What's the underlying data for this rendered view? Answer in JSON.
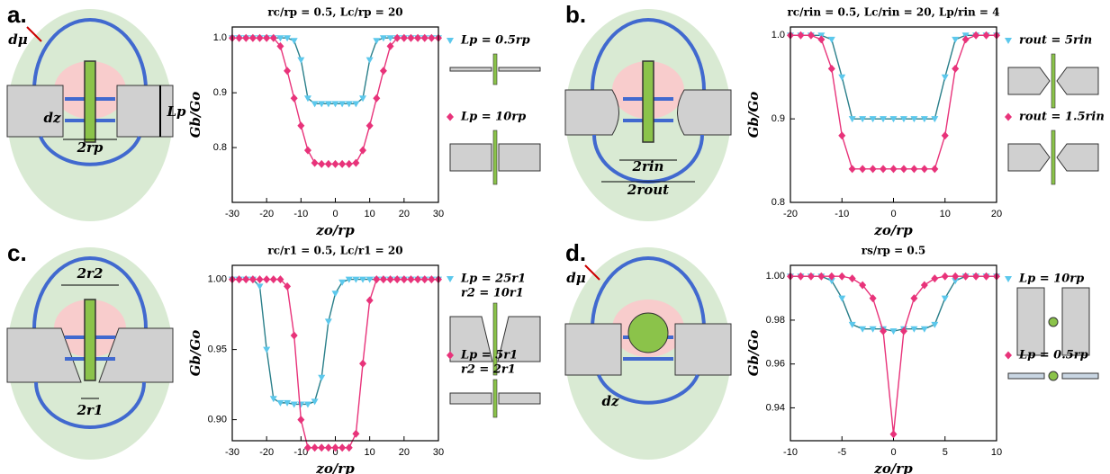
{
  "chart_data": [
    {
      "type": "line",
      "label": "a.",
      "title": "rc/rp = 0.5, Lc/rp = 20",
      "xlabel": "zo/rp",
      "ylabel": "Gb/Go",
      "diagram_labels": [
        "dμ",
        "dz",
        "Lp",
        "2rp"
      ],
      "xlim": [
        -30,
        30
      ],
      "xticks": [
        -30,
        -20,
        -10,
        0,
        10,
        20,
        30
      ],
      "ylim": [
        0.7,
        1.02
      ],
      "yticks": [
        0.8,
        0.9,
        {
          "value": 1,
          "label": "1.0"
        }
      ],
      "x": [
        -30,
        -28,
        -26,
        -24,
        -22,
        -20,
        -18,
        -16,
        -14,
        -12,
        -10,
        -8,
        -6,
        -4,
        -2,
        0,
        2,
        4,
        6,
        8,
        10,
        12,
        14,
        16,
        18,
        20,
        22,
        24,
        26,
        28,
        30
      ],
      "series": [
        {
          "name": [
            "Lp = 0.5rp"
          ],
          "color": "#5cc8ec",
          "line_color": "#2a7f8a",
          "marker": "triangle",
          "values": [
            1,
            1,
            1,
            1,
            1,
            1,
            1,
            1,
            1,
            0.995,
            0.96,
            0.89,
            0.88,
            0.88,
            0.88,
            0.88,
            0.88,
            0.88,
            0.88,
            0.89,
            0.96,
            0.995,
            1,
            1,
            1,
            1,
            1,
            1,
            1,
            1,
            1
          ]
        },
        {
          "name": [
            "Lp = 10rp"
          ],
          "color": "#e8337a",
          "line_color": "#e8337a",
          "marker": "diamond",
          "values": [
            1,
            1,
            1,
            1,
            1,
            1,
            1,
            0.985,
            0.94,
            0.89,
            0.84,
            0.795,
            0.772,
            0.77,
            0.77,
            0.77,
            0.77,
            0.77,
            0.772,
            0.795,
            0.84,
            0.89,
            0.94,
            0.985,
            1,
            1,
            1,
            1,
            1,
            1,
            1
          ]
        }
      ]
    },
    {
      "type": "line",
      "label": "b.",
      "title": "rc/rin = 0.5, Lc/rin = 20, Lp/rin = 4",
      "xlabel": "zo/rp",
      "ylabel": "Gb/Go",
      "diagram_labels": [
        "2rin",
        "2rout"
      ],
      "xlim": [
        -20,
        20
      ],
      "xticks": [
        -20,
        -10,
        0,
        10,
        20
      ],
      "ylim": [
        0.8,
        1.01
      ],
      "yticks": [
        0.8,
        0.9,
        {
          "value": 1,
          "label": "1.0"
        }
      ],
      "x": [
        -20,
        -18,
        -16,
        -14,
        -12,
        -10,
        -8,
        -6,
        -4,
        -2,
        0,
        2,
        4,
        6,
        8,
        10,
        12,
        14,
        16,
        18,
        20
      ],
      "series": [
        {
          "name": [
            "rout = 5rin"
          ],
          "color": "#5cc8ec",
          "line_color": "#2a7f8a",
          "marker": "triangle",
          "values": [
            1,
            1,
            1,
            1,
            0.995,
            0.95,
            0.9,
            0.9,
            0.9,
            0.9,
            0.9,
            0.9,
            0.9,
            0.9,
            0.9,
            0.95,
            0.995,
            1,
            1,
            1,
            1
          ]
        },
        {
          "name": [
            "rout = 1.5rin"
          ],
          "color": "#e8337a",
          "line_color": "#e8337a",
          "marker": "diamond",
          "values": [
            1,
            1,
            1,
            0.995,
            0.96,
            0.88,
            0.84,
            0.84,
            0.84,
            0.84,
            0.84,
            0.84,
            0.84,
            0.84,
            0.84,
            0.88,
            0.96,
            0.995,
            1,
            1,
            1
          ]
        }
      ]
    },
    {
      "type": "line",
      "label": "c.",
      "title": "rc/r1 = 0.5, Lc/r1 = 20",
      "xlabel": "zo/rp",
      "ylabel": "Gb/Go",
      "diagram_labels": [
        "2r2",
        "2r1"
      ],
      "xlim": [
        -30,
        30
      ],
      "xticks": [
        -30,
        -20,
        -10,
        0,
        10,
        20,
        30
      ],
      "ylim": [
        0.885,
        1.01
      ],
      "yticks": [
        {
          "value": 0.9,
          "label": "0.90"
        },
        0.95,
        {
          "value": 1,
          "label": "1.00"
        }
      ],
      "x": [
        -30,
        -28,
        -26,
        -24,
        -22,
        -20,
        -18,
        -16,
        -14,
        -12,
        -10,
        -8,
        -6,
        -4,
        -2,
        0,
        2,
        4,
        6,
        8,
        10,
        12,
        14,
        16,
        18,
        20,
        22,
        24,
        26,
        28,
        30
      ],
      "series": [
        {
          "name": [
            "Lp = 25r1",
            "r2 = 10r1"
          ],
          "color": "#5cc8ec",
          "line_color": "#2a7f8a",
          "marker": "triangle",
          "values": [
            1,
            1,
            1,
            1,
            0.995,
            0.95,
            0.915,
            0.912,
            0.912,
            0.911,
            0.911,
            0.911,
            0.913,
            0.93,
            0.97,
            0.99,
            0.998,
            1,
            1,
            1,
            1,
            1,
            1,
            1,
            1,
            1,
            1,
            1,
            1,
            1,
            1
          ]
        },
        {
          "name": [
            "Lp = 5r1",
            "r2 = 2r1"
          ],
          "color": "#e8337a",
          "line_color": "#e8337a",
          "marker": "diamond",
          "values": [
            1,
            1,
            1,
            1,
            1,
            1,
            1,
            1,
            0.995,
            0.96,
            0.9,
            0.88,
            0.88,
            0.88,
            0.88,
            0.88,
            0.88,
            0.88,
            0.89,
            0.94,
            0.985,
            1,
            1,
            1,
            1,
            1,
            1,
            1,
            1,
            1,
            1
          ]
        }
      ]
    },
    {
      "type": "line",
      "label": "d.",
      "title": "rs/rp = 0.5",
      "xlabel": "zo/rp",
      "ylabel": "Gb/Go",
      "diagram_labels": [
        "dμ",
        "dz"
      ],
      "xlim": [
        -10,
        10
      ],
      "xticks": [
        -10,
        -5,
        0,
        5,
        10
      ],
      "ylim": [
        0.925,
        1.005
      ],
      "yticks": [
        0.94,
        0.96,
        0.98,
        {
          "value": 1,
          "label": "1.00"
        }
      ],
      "x": [
        -10,
        -9,
        -8,
        -7,
        -6,
        -5,
        -4,
        -3,
        -2,
        -1,
        0,
        1,
        2,
        3,
        4,
        5,
        6,
        7,
        8,
        9,
        10
      ],
      "series": [
        {
          "name": [
            "Lp = 10rp"
          ],
          "color": "#5cc8ec",
          "line_color": "#2a7f8a",
          "marker": "triangle",
          "values": [
            1,
            1,
            1,
            1,
            0.998,
            0.99,
            0.978,
            0.976,
            0.976,
            0.976,
            0.975,
            0.976,
            0.976,
            0.976,
            0.978,
            0.99,
            0.998,
            1,
            1,
            1,
            1
          ]
        },
        {
          "name": [
            "Lp = 0.5rp"
          ],
          "color": "#e8337a",
          "line_color": "#e8337a",
          "marker": "diamond",
          "values": [
            1,
            1,
            1,
            1,
            1,
            1,
            0.999,
            0.996,
            0.99,
            0.975,
            0.928,
            0.975,
            0.99,
            0.996,
            0.999,
            1,
            1,
            1,
            1,
            1,
            1
          ]
        }
      ]
    }
  ]
}
